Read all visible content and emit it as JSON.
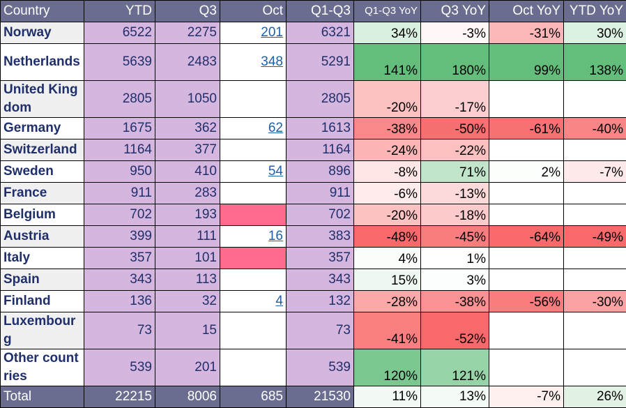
{
  "headers": [
    "Country",
    "YTD",
    "Q3",
    "Oct",
    "Q1-Q3",
    "Q1-Q3 YoY",
    "Q3 YoY",
    "Oct YoY",
    "YTD YoY"
  ],
  "rows": [
    {
      "country": "Norway",
      "ytd": "6522",
      "q3": "2275",
      "oct": "201",
      "q1q3": "6321",
      "q1q3_yoy": "34%",
      "q3_yoy": "-3%",
      "oct_yoy": "-31%",
      "ytd_yoy": "30%"
    },
    {
      "country": "Netherlands",
      "ytd": "5639",
      "q3": "2483",
      "oct": "348",
      "q1q3": "5291",
      "q1q3_yoy": "141%",
      "q3_yoy": "180%",
      "oct_yoy": "99%",
      "ytd_yoy": "138%"
    },
    {
      "country": "United Kingdom",
      "ytd": "2805",
      "q3": "1050",
      "oct": "",
      "q1q3": "2805",
      "q1q3_yoy": "-20%",
      "q3_yoy": "-17%",
      "oct_yoy": "",
      "ytd_yoy": ""
    },
    {
      "country": "Germany",
      "ytd": "1675",
      "q3": "362",
      "oct": "62",
      "q1q3": "1613",
      "q1q3_yoy": "-38%",
      "q3_yoy": "-50%",
      "oct_yoy": "-61%",
      "ytd_yoy": "-40%"
    },
    {
      "country": "Switzerland",
      "ytd": "1164",
      "q3": "377",
      "oct": "",
      "q1q3": "1164",
      "q1q3_yoy": "-24%",
      "q3_yoy": "-22%",
      "oct_yoy": "",
      "ytd_yoy": ""
    },
    {
      "country": "Sweden",
      "ytd": "950",
      "q3": "410",
      "oct": "54",
      "q1q3": "896",
      "q1q3_yoy": "-8%",
      "q3_yoy": "71%",
      "oct_yoy": "2%",
      "ytd_yoy": "-7%"
    },
    {
      "country": "France",
      "ytd": "911",
      "q3": "283",
      "oct": "",
      "q1q3": "911",
      "q1q3_yoy": "-6%",
      "q3_yoy": "-13%",
      "oct_yoy": "",
      "ytd_yoy": ""
    },
    {
      "country": "Belgium",
      "ytd": "702",
      "q3": "193",
      "oct": "",
      "q1q3": "702",
      "q1q3_yoy": "-20%",
      "q3_yoy": "-18%",
      "oct_yoy": "",
      "ytd_yoy": ""
    },
    {
      "country": "Austria",
      "ytd": "399",
      "q3": "111",
      "oct": "16",
      "q1q3": "383",
      "q1q3_yoy": "-48%",
      "q3_yoy": "-45%",
      "oct_yoy": "-64%",
      "ytd_yoy": "-49%"
    },
    {
      "country": "Italy",
      "ytd": "357",
      "q3": "101",
      "oct": "",
      "q1q3": "357",
      "q1q3_yoy": "4%",
      "q3_yoy": "1%",
      "oct_yoy": "",
      "ytd_yoy": ""
    },
    {
      "country": "Spain",
      "ytd": "343",
      "q3": "113",
      "oct": "",
      "q1q3": "343",
      "q1q3_yoy": "15%",
      "q3_yoy": "3%",
      "oct_yoy": "",
      "ytd_yoy": ""
    },
    {
      "country": "Finland",
      "ytd": "136",
      "q3": "32",
      "oct": "4",
      "q1q3": "132",
      "q1q3_yoy": "-28%",
      "q3_yoy": "-38%",
      "oct_yoy": "-56%",
      "ytd_yoy": "-30%"
    },
    {
      "country": "Luxembourg",
      "ytd": "73",
      "q3": "15",
      "oct": "",
      "q1q3": "73",
      "q1q3_yoy": "-41%",
      "q3_yoy": "-52%",
      "oct_yoy": "",
      "ytd_yoy": ""
    },
    {
      "country": "Other countries",
      "ytd": "539",
      "q3": "201",
      "oct": "",
      "q1q3": "539",
      "q1q3_yoy": "120%",
      "q3_yoy": "121%",
      "oct_yoy": "",
      "ytd_yoy": ""
    }
  ],
  "total": {
    "label": "Total",
    "ytd": "22215",
    "q3": "8006",
    "oct": "685",
    "q1q3": "21530",
    "q1q3_yoy": "11%",
    "q3_yoy": "13%",
    "oct_yoy": "-7%",
    "ytd_yoy": "26%"
  },
  "colors": {
    "header_bg": "#6a6d8f",
    "purple_cells": "#d5b6df",
    "missing_marker": "#ff6b8c",
    "positive_scale": "#63be7b",
    "negative_scale": "#f8696b"
  }
}
